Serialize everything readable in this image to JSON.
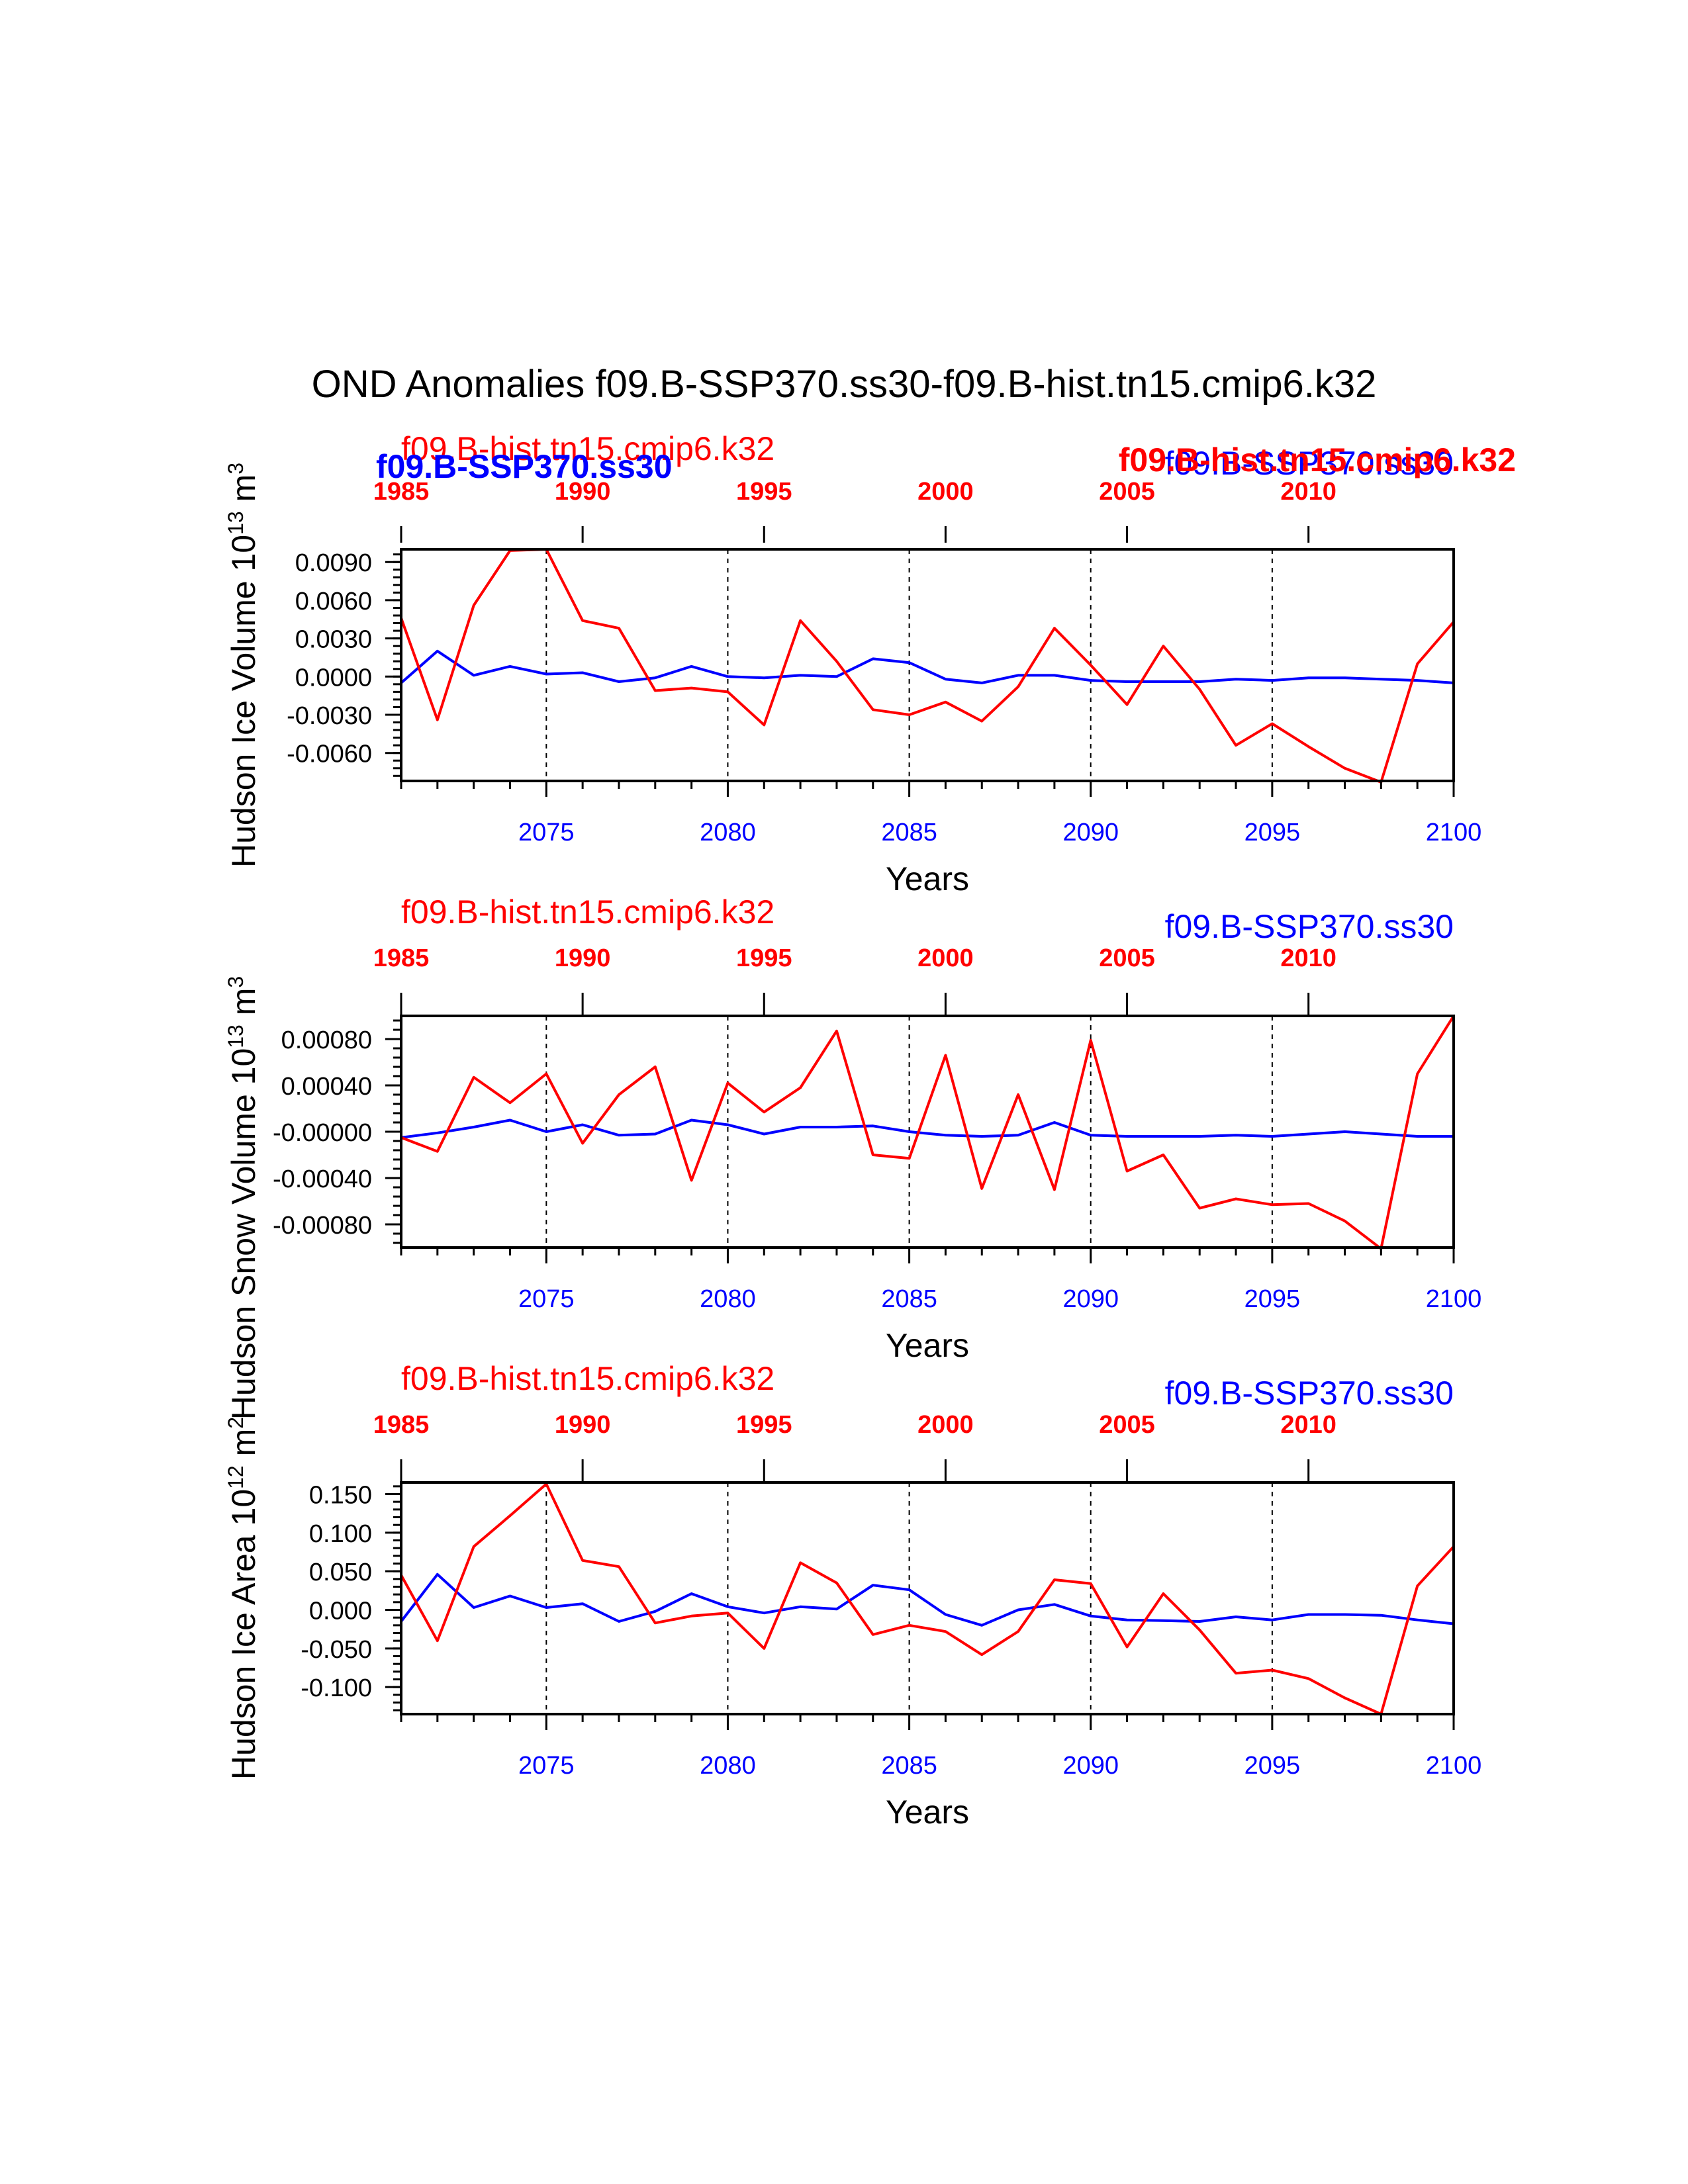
{
  "title": "OND Anomalies f09.B-SSP370.ss30-f09.B-hist.tn15.cmip6.k32",
  "colors": {
    "blue": "#0000ff",
    "red": "#ff0000",
    "black": "#000000"
  },
  "chart_data": [
    {
      "type": "line",
      "ylabel": "Hudson Ice Volume 10^13 m^3",
      "xlabel": "Years",
      "bottom_axis": {
        "range": [
          2071,
          2100
        ],
        "ticks": [
          2075,
          2080,
          2085,
          2090,
          2095,
          2100
        ]
      },
      "top_axis": {
        "range": [
          1985,
          2014
        ],
        "ticks": [
          1985,
          1990,
          1995,
          2000,
          2005,
          2010
        ]
      },
      "ylim": [
        -0.0082,
        0.01
      ],
      "y_ticks": [
        -0.006,
        -0.003,
        0.0,
        0.003,
        0.006,
        0.009
      ],
      "y_tick_labels": [
        "-0.0060",
        "-0.0030",
        "0.0000",
        "0.0030",
        "0.0060",
        "0.0090"
      ],
      "legend_left": {
        "upper": "f09.B-hist.tn15.cmip6.k32",
        "lower": "f09.B-SSP370.ss30"
      },
      "legend_right": {
        "upper": "f09.B-SSP370.ss30",
        "lower": "f09.B-hist.tn15.cmip6.k32"
      },
      "series": [
        {
          "name": "f09.B-SSP370.ss30",
          "color": "#0000ff",
          "x_axis": "bottom",
          "values": [
            -0.0005,
            0.002,
            0.0001,
            0.0008,
            0.0002,
            0.0003,
            -0.0004,
            -0.0001,
            0.0008,
            0.0,
            -0.0001,
            0.0001,
            0.0,
            0.0014,
            0.0011,
            -0.0002,
            -0.0005,
            0.0001,
            0.0001,
            -0.0003,
            -0.0004,
            -0.0004,
            -0.0004,
            -0.0002,
            -0.0003,
            -0.0001,
            -0.0001,
            -0.0002,
            -0.0003,
            -0.0005
          ]
        },
        {
          "name": "f09.B-hist.tn15.cmip6.k32",
          "color": "#ff0000",
          "x_axis": "top",
          "values": [
            0.0046,
            -0.0034,
            0.0056,
            0.0099,
            0.01,
            0.0044,
            0.0038,
            -0.0011,
            -0.0009,
            -0.0012,
            -0.0038,
            0.0044,
            0.0012,
            -0.0026,
            -0.003,
            -0.002,
            -0.0035,
            -0.0008,
            0.0038,
            0.0009,
            -0.0022,
            0.0024,
            -0.001,
            -0.0054,
            -0.0037,
            -0.0055,
            -0.0072,
            -0.0083,
            0.001,
            0.0043
          ]
        }
      ]
    },
    {
      "type": "line",
      "ylabel": "Hudson Snow Volume 10^13 m^3",
      "xlabel": "Years",
      "bottom_axis": {
        "range": [
          2071,
          2100
        ],
        "ticks": [
          2075,
          2080,
          2085,
          2090,
          2095,
          2100
        ]
      },
      "top_axis": {
        "range": [
          1985,
          2014
        ],
        "ticks": [
          1985,
          1990,
          1995,
          2000,
          2005,
          2010
        ]
      },
      "ylim": [
        -0.001,
        0.001
      ],
      "y_ticks": [
        -0.0008,
        -0.0004,
        0.0,
        0.0004,
        0.0008
      ],
      "y_tick_labels": [
        "-0.00080",
        "-0.00040",
        "-0.00000",
        "0.00040",
        "0.00080"
      ],
      "legend_left": {
        "upper": "f09.B-hist.tn15.cmip6.k32"
      },
      "legend_right": {
        "upper": "f09.B-SSP370.ss30"
      },
      "series": [
        {
          "name": "f09.B-SSP370.ss30",
          "color": "#0000ff",
          "x_axis": "bottom",
          "values": [
            -5e-05,
            -1e-05,
            4e-05,
            0.0001,
            0.0,
            6e-05,
            -3e-05,
            -2e-05,
            0.0001,
            6e-05,
            -2e-05,
            4e-05,
            4e-05,
            5e-05,
            0.0,
            -3e-05,
            -4e-05,
            -3e-05,
            8e-05,
            -3e-05,
            -4e-05,
            -4e-05,
            -4e-05,
            -3e-05,
            -4e-05,
            -2e-05,
            0.0,
            -2e-05,
            -4e-05,
            -4e-05
          ]
        },
        {
          "name": "f09.B-hist.tn15.cmip6.k32",
          "color": "#ff0000",
          "x_axis": "top",
          "values": [
            -5e-05,
            -0.00017,
            0.00047,
            0.00025,
            0.0005,
            -0.0001,
            0.00032,
            0.00056,
            -0.00042,
            0.00042,
            0.00017,
            0.00038,
            0.00087,
            -0.0002,
            -0.00023,
            0.00066,
            -0.00049,
            0.00032,
            -0.0005,
            0.00079,
            -0.00034,
            -0.0002,
            -0.00066,
            -0.00058,
            -0.00063,
            -0.00062,
            -0.00077,
            -0.00101,
            0.0005,
            0.001
          ]
        }
      ]
    },
    {
      "type": "line",
      "ylabel": "Hudson Ice Area 10^12 m^2",
      "xlabel": "Years",
      "bottom_axis": {
        "range": [
          2071,
          2100
        ],
        "ticks": [
          2075,
          2080,
          2085,
          2090,
          2095,
          2100
        ]
      },
      "top_axis": {
        "range": [
          1985,
          2014
        ],
        "ticks": [
          1985,
          1990,
          1995,
          2000,
          2005,
          2010
        ]
      },
      "ylim": [
        -0.135,
        0.165
      ],
      "y_ticks": [
        -0.1,
        -0.05,
        0.0,
        0.05,
        0.1,
        0.15
      ],
      "y_tick_labels": [
        "-0.100",
        "-0.050",
        "0.000",
        "0.050",
        "0.100",
        "0.150"
      ],
      "legend_left": {
        "upper": "f09.B-hist.tn15.cmip6.k32"
      },
      "legend_right": {
        "upper": "f09.B-SSP370.ss30"
      },
      "series": [
        {
          "name": "f09.B-SSP370.ss30",
          "color": "#0000ff",
          "x_axis": "bottom",
          "values": [
            -0.015,
            0.046,
            0.003,
            0.018,
            0.003,
            0.008,
            -0.015,
            -0.002,
            0.021,
            0.004,
            -0.004,
            0.004,
            0.001,
            0.032,
            0.026,
            -0.006,
            -0.02,
            0.0,
            0.007,
            -0.008,
            -0.013,
            -0.014,
            -0.015,
            -0.009,
            -0.013,
            -0.006,
            -0.006,
            -0.007,
            -0.013,
            -0.018
          ]
        },
        {
          "name": "f09.B-hist.tn15.cmip6.k32",
          "color": "#ff0000",
          "x_axis": "top",
          "values": [
            0.045,
            -0.04,
            0.082,
            0.122,
            0.163,
            0.064,
            0.056,
            -0.017,
            -0.008,
            -0.004,
            -0.05,
            0.061,
            0.035,
            -0.032,
            -0.02,
            -0.028,
            -0.058,
            -0.028,
            0.039,
            0.034,
            -0.048,
            0.021,
            -0.026,
            -0.082,
            -0.078,
            -0.089,
            -0.114,
            -0.135,
            0.031,
            0.082
          ]
        }
      ]
    }
  ]
}
